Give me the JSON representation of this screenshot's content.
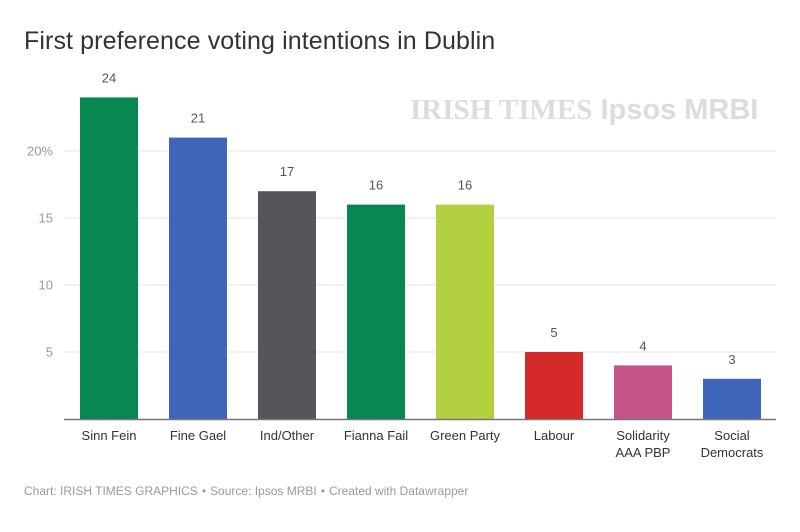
{
  "chart_data": {
    "type": "bar",
    "title": "First preference voting intentions in Dublin",
    "xlabel": "",
    "ylabel": "",
    "ylim": [
      0,
      25
    ],
    "yticks": [
      5,
      10,
      15,
      20
    ],
    "ytick_labels": [
      "5",
      "10",
      "15",
      "20%"
    ],
    "grid": true,
    "categories": [
      "Sinn Fein",
      "Fine Gael",
      "Ind/Other",
      "Fianna Fail",
      "Green Party",
      "Labour",
      "Solidarity AAA PBP",
      "Social Democrats"
    ],
    "category_label_lines": [
      [
        "Sinn Fein"
      ],
      [
        "Fine Gael"
      ],
      [
        "Ind/Other"
      ],
      [
        "Fianna Fail"
      ],
      [
        "Green Party"
      ],
      [
        "Labour"
      ],
      [
        "Solidarity",
        "AAA PBP"
      ],
      [
        "Social",
        "Democrats"
      ]
    ],
    "values": [
      24,
      21,
      17,
      16,
      16,
      5,
      4,
      3
    ],
    "colors": [
      "#088752",
      "#3f65b8",
      "#57555b",
      "#088752",
      "#b3d040",
      "#d42a2a",
      "#c4538a",
      "#3f65b8"
    ],
    "data_labels": [
      "24",
      "21",
      "17",
      "16",
      "16",
      "5",
      "4",
      "3"
    ]
  },
  "watermark": {
    "part1": "IRISH TIMES",
    "part2": "Ipsos MRBI"
  },
  "footer": {
    "chart_credit": "Chart: IRISH TIMES GRAPHICS",
    "source": "Source: Ipsos MRBI",
    "created_with": "Created with Datawrapper",
    "separator": "•"
  }
}
